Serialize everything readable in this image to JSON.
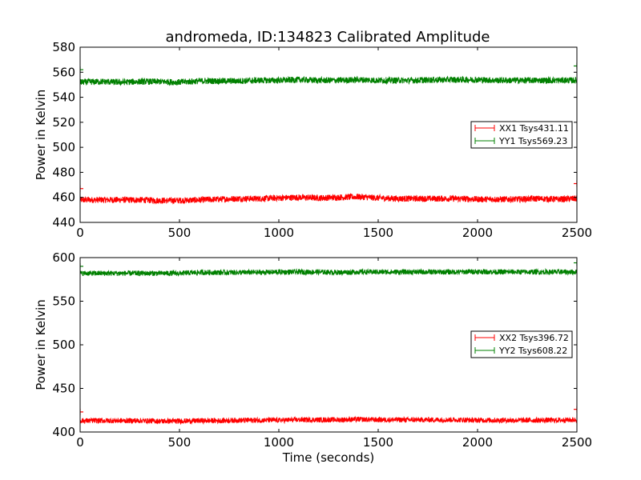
{
  "chart_data": [
    {
      "type": "line",
      "title": "andromeda, ID:134823 Calibrated Amplitude",
      "xlabel": "",
      "ylabel": "Power in Kelvin",
      "xlim": [
        0,
        2500
      ],
      "ylim": [
        440,
        580
      ],
      "xticks": [
        "0",
        "500",
        "1000",
        "1500",
        "2000",
        "2500"
      ],
      "yticks": [
        "440",
        "460",
        "480",
        "500",
        "520",
        "540",
        "560",
        "580"
      ],
      "grid": false,
      "legend_position": "center-right",
      "series": [
        {
          "name": "XX1 Tsys431.11",
          "color": "#ff0000",
          "marker": "+",
          "x": [
            0,
            100,
            200,
            300,
            400,
            500,
            600,
            700,
            800,
            900,
            1000,
            1100,
            1200,
            1300,
            1400,
            1500,
            1600,
            1700,
            1800,
            1900,
            2000,
            2100,
            2200,
            2300,
            2400,
            2500
          ],
          "y": [
            458,
            458,
            458,
            458,
            457.5,
            457.5,
            458,
            458.5,
            459,
            459,
            459.5,
            460,
            459.5,
            460,
            460.5,
            459.5,
            459,
            459,
            459,
            459,
            458.5,
            458.5,
            458.5,
            459,
            458.5,
            459
          ],
          "noise": 2.5,
          "endpoints": [
            {
              "x": 0,
              "y": 467
            },
            {
              "x": 2500,
              "y": 471
            }
          ]
        },
        {
          "name": "YY1 Tsys569.23",
          "color": "#008000",
          "marker": "+",
          "x": [
            0,
            100,
            200,
            300,
            400,
            500,
            600,
            700,
            800,
            900,
            1000,
            1100,
            1200,
            1300,
            1400,
            1500,
            1600,
            1700,
            1800,
            1900,
            2000,
            2100,
            2200,
            2300,
            2400,
            2500
          ],
          "y": [
            552,
            552.5,
            552,
            552.5,
            552.5,
            552,
            553,
            553,
            553,
            553.5,
            553.5,
            554,
            553.5,
            553.5,
            554,
            553.5,
            553.5,
            553.5,
            554,
            554,
            554,
            553.5,
            553.5,
            553.5,
            553.5,
            553.5
          ],
          "noise": 2.5,
          "endpoints": [
            {
              "x": 0,
              "y": 562
            },
            {
              "x": 2500,
              "y": 565
            }
          ]
        }
      ]
    },
    {
      "type": "line",
      "title": "",
      "xlabel": "Time (seconds)",
      "ylabel": "Power in Kelvin",
      "xlim": [
        0,
        2500
      ],
      "ylim": [
        400,
        600
      ],
      "xticks": [
        "0",
        "500",
        "1000",
        "1500",
        "2000",
        "2500"
      ],
      "yticks": [
        "400",
        "450",
        "500",
        "550",
        "600"
      ],
      "grid": false,
      "legend_position": "center-right",
      "series": [
        {
          "name": "XX2 Tsys396.72",
          "color": "#ff0000",
          "marker": "+",
          "x": [
            0,
            100,
            200,
            300,
            400,
            500,
            600,
            700,
            800,
            900,
            1000,
            1100,
            1200,
            1300,
            1400,
            1500,
            1600,
            1700,
            1800,
            1900,
            2000,
            2100,
            2200,
            2300,
            2400,
            2500
          ],
          "y": [
            413,
            413,
            413,
            413,
            412.5,
            412.5,
            413,
            413,
            413.5,
            413.5,
            413.5,
            414,
            414,
            414,
            414.5,
            414,
            414,
            414,
            414,
            414,
            413.5,
            413.5,
            413.5,
            413.5,
            413.5,
            414
          ],
          "noise": 3,
          "endpoints": [
            {
              "x": 0,
              "y": 423
            },
            {
              "x": 2500,
              "y": 426
            }
          ]
        },
        {
          "name": "YY2 Tsys608.22",
          "color": "#008000",
          "marker": "+",
          "x": [
            0,
            100,
            200,
            300,
            400,
            500,
            600,
            700,
            800,
            900,
            1000,
            1100,
            1200,
            1300,
            1400,
            1500,
            1600,
            1700,
            1800,
            1900,
            2000,
            2100,
            2200,
            2300,
            2400,
            2500
          ],
          "y": [
            582,
            582,
            582,
            582,
            582,
            582,
            583,
            583,
            583,
            583,
            583.5,
            583.5,
            583.5,
            583,
            583.5,
            583.5,
            583.5,
            583.5,
            583.5,
            583.5,
            584,
            583.5,
            583.5,
            583.5,
            583.5,
            583.5
          ],
          "noise": 3,
          "endpoints": [
            {
              "x": 0,
              "y": 590
            },
            {
              "x": 2500,
              "y": 594
            }
          ]
        }
      ]
    }
  ]
}
